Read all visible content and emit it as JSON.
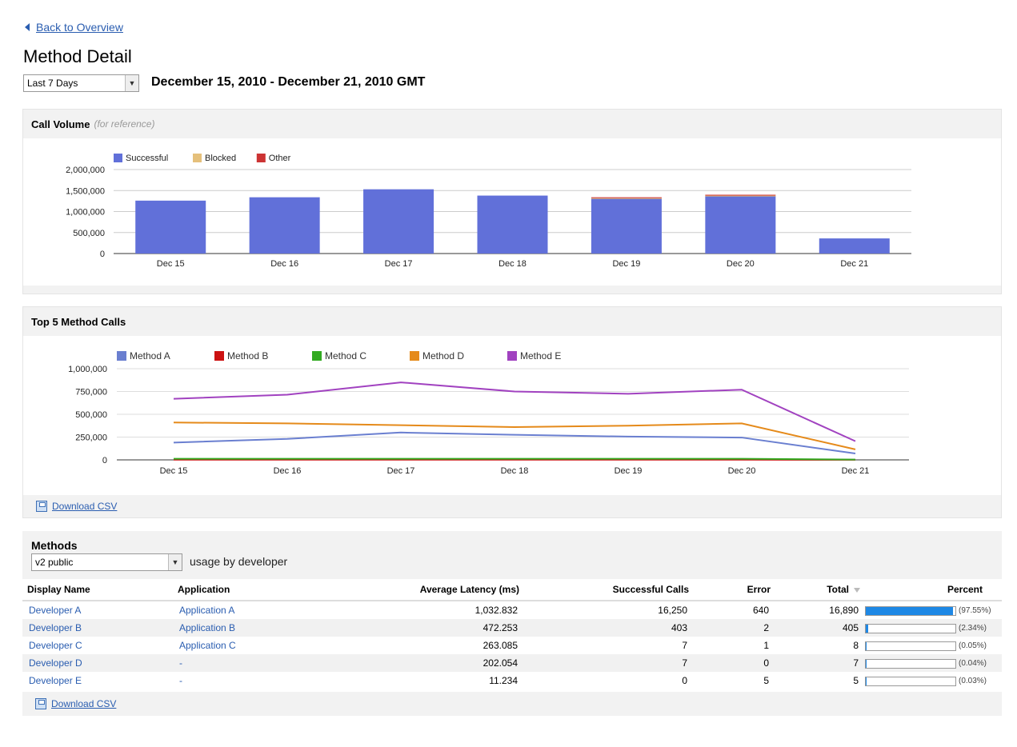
{
  "nav": {
    "back_label": "Back to Overview"
  },
  "page": {
    "title": "Method Detail"
  },
  "range": {
    "selected": "Last 7 Days",
    "label": "December 15, 2010 - December 21, 2010 GMT"
  },
  "call_volume": {
    "title": "Call Volume",
    "subtitle": "(for reference)"
  },
  "top5": {
    "title": "Top 5 Method Calls",
    "csv_label": "Download CSV"
  },
  "chart_data": [
    {
      "type": "bar",
      "title": "Call Volume",
      "categories": [
        "Dec 15",
        "Dec 16",
        "Dec 17",
        "Dec 18",
        "Dec 19",
        "Dec 20",
        "Dec 21"
      ],
      "stacked": true,
      "series": [
        {
          "name": "Successful",
          "color": "#6170d9",
          "values": [
            1260000,
            1340000,
            1530000,
            1380000,
            1310000,
            1370000,
            360000
          ]
        },
        {
          "name": "Blocked",
          "color": "#e5c07b",
          "values": [
            0,
            0,
            0,
            0,
            10000,
            10000,
            0
          ]
        },
        {
          "name": "Other",
          "color": "#cc3333",
          "values": [
            0,
            0,
            0,
            0,
            20000,
            20000,
            0
          ]
        }
      ],
      "ylim": [
        0,
        2000000
      ],
      "yticks": [
        "2,000,000",
        "1,500,000",
        "1,000,000",
        "500,000",
        "0"
      ],
      "legend": "top-left",
      "grid": true
    },
    {
      "type": "line",
      "title": "Top 5 Method Calls",
      "categories": [
        "Dec 15",
        "Dec 16",
        "Dec 17",
        "Dec 18",
        "Dec 19",
        "Dec 20",
        "Dec 21"
      ],
      "series": [
        {
          "name": "Method A",
          "color": "#6a7fd0",
          "values": [
            190000,
            230000,
            300000,
            275000,
            255000,
            245000,
            70000
          ]
        },
        {
          "name": "Method B",
          "color": "#cc1111",
          "values": [
            2000,
            2000,
            2000,
            2000,
            2000,
            2000,
            1000
          ]
        },
        {
          "name": "Method C",
          "color": "#33aa22",
          "values": [
            12000,
            12000,
            12000,
            12000,
            12000,
            12000,
            3000
          ]
        },
        {
          "name": "Method D",
          "color": "#e58a1a",
          "values": [
            410000,
            400000,
            380000,
            360000,
            375000,
            400000,
            115000
          ]
        },
        {
          "name": "Method E",
          "color": "#a142c0",
          "values": [
            670000,
            715000,
            850000,
            750000,
            725000,
            770000,
            205000
          ]
        }
      ],
      "ylim": [
        0,
        1000000
      ],
      "yticks": [
        "1,000,000",
        "750,000",
        "500,000",
        "250,000",
        "0"
      ],
      "legend": "top",
      "grid": true
    }
  ],
  "methods": {
    "title": "Methods",
    "selected": "v2 public",
    "usage_label": "usage by developer",
    "columns": [
      "Display Name",
      "Application",
      "Average Latency (ms)",
      "Successful Calls",
      "Error",
      "Total",
      "Percent"
    ],
    "rows": [
      {
        "name": "Developer A",
        "app": "Application A",
        "latency": "1,032.832",
        "success": "16,250",
        "error": "640",
        "total": "16,890",
        "percent": 97.55,
        "percent_label": "(97.55%)"
      },
      {
        "name": "Developer B",
        "app": "Application B",
        "latency": "472.253",
        "success": "403",
        "error": "2",
        "total": "405",
        "percent": 2.34,
        "percent_label": "(2.34%)"
      },
      {
        "name": "Developer C",
        "app": "Application C",
        "latency": "263.085",
        "success": "7",
        "error": "1",
        "total": "8",
        "percent": 0.05,
        "percent_label": "(0.05%)"
      },
      {
        "name": "Developer D",
        "app": "-",
        "latency": "202.054",
        "success": "7",
        "error": "0",
        "total": "7",
        "percent": 0.04,
        "percent_label": "(0.04%)"
      },
      {
        "name": "Developer E",
        "app": "-",
        "latency": "11.234",
        "success": "0",
        "error": "5",
        "total": "5",
        "percent": 0.03,
        "percent_label": "(0.03%)"
      }
    ],
    "csv_label": "Download CSV"
  },
  "colors": {
    "link": "#2a5db0",
    "bar_fill": "#1e88e5"
  }
}
